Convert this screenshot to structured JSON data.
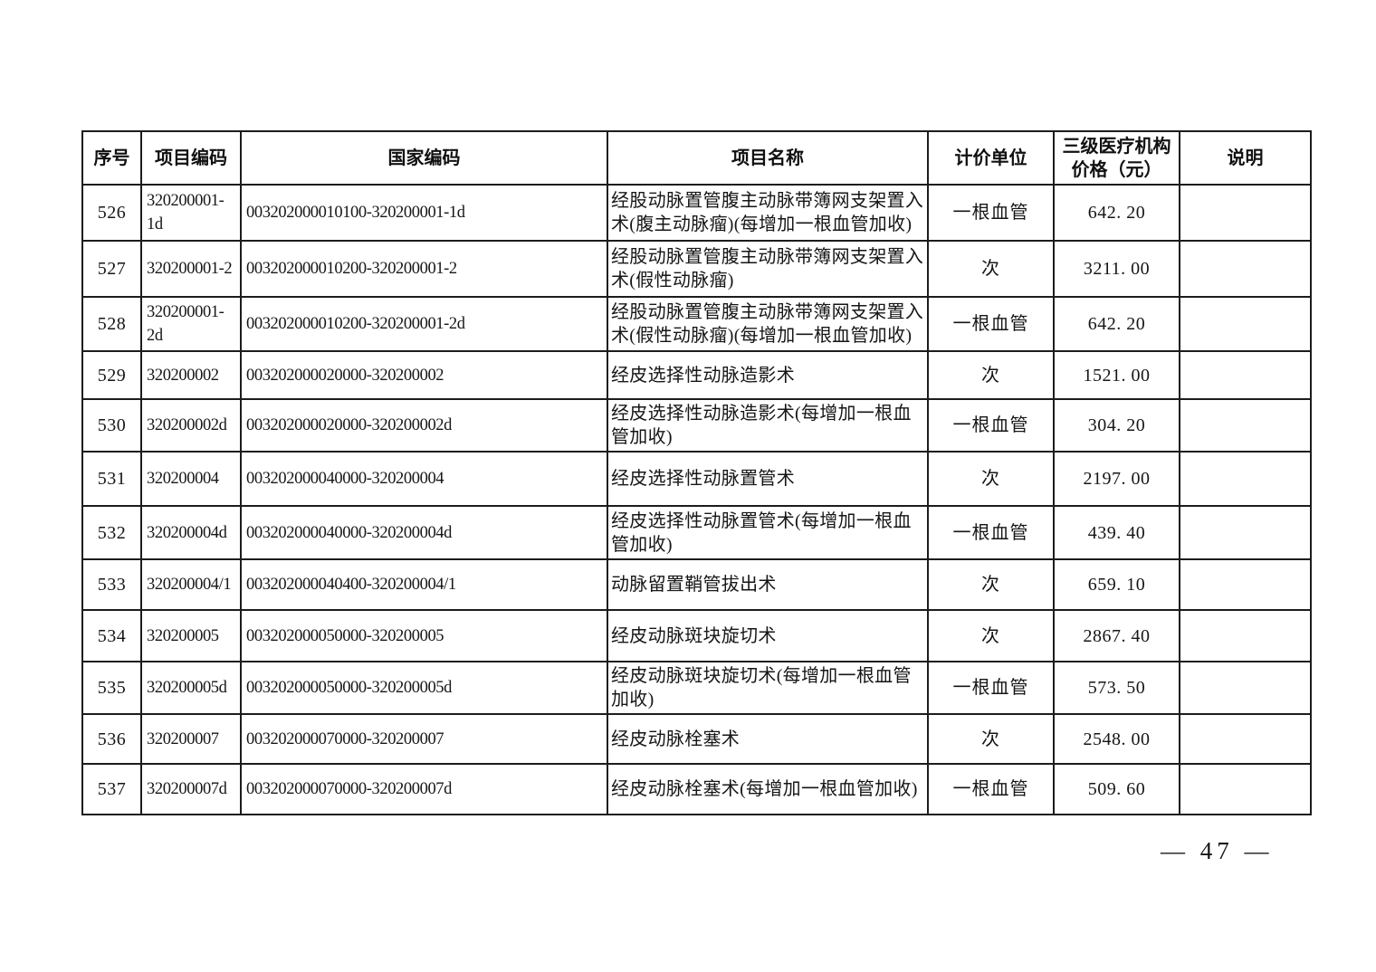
{
  "table": {
    "columns": [
      {
        "key": "seq",
        "label": "序号"
      },
      {
        "key": "item_code",
        "label": "项目编码"
      },
      {
        "key": "national_code",
        "label": "国家编码"
      },
      {
        "key": "item_name",
        "label": "项目名称"
      },
      {
        "key": "unit",
        "label": "计价单位"
      },
      {
        "key": "price",
        "label": "三级医疗机构价格（元）",
        "label_lines": [
          "三级医疗机构",
          "价格（元）"
        ]
      },
      {
        "key": "note",
        "label": "说明"
      }
    ],
    "rows": [
      {
        "seq": "526",
        "item_code": "320200001-1d",
        "national_code": "003202000010100-320200001-1d",
        "item_name": "经股动脉置管腹主动脉带簿网支架置入术(腹主动脉瘤)(每增加一根血管加收)",
        "unit": "一根血管",
        "price": "642. 20",
        "note": ""
      },
      {
        "seq": "527",
        "item_code": "320200001-2",
        "national_code": "003202000010200-320200001-2",
        "item_name": "经股动脉置管腹主动脉带簿网支架置入术(假性动脉瘤)",
        "unit": "次",
        "price": "3211. 00",
        "note": ""
      },
      {
        "seq": "528",
        "item_code": "320200001-2d",
        "national_code": "003202000010200-320200001-2d",
        "item_name": "经股动脉置管腹主动脉带簿网支架置入术(假性动脉瘤)(每增加一根血管加收)",
        "unit": "一根血管",
        "price": "642. 20",
        "note": ""
      },
      {
        "seq": "529",
        "item_code": "320200002",
        "national_code": "003202000020000-320200002",
        "item_name": "经皮选择性动脉造影术",
        "unit": "次",
        "price": "1521. 00",
        "note": ""
      },
      {
        "seq": "530",
        "item_code": "320200002d",
        "national_code": "003202000020000-320200002d",
        "item_name": "经皮选择性动脉造影术(每增加一根血管加收)",
        "unit": "一根血管",
        "price": "304. 20",
        "note": ""
      },
      {
        "seq": "531",
        "item_code": "320200004",
        "national_code": "003202000040000-320200004",
        "item_name": "经皮选择性动脉置管术",
        "unit": "次",
        "price": "2197. 00",
        "note": ""
      },
      {
        "seq": "532",
        "item_code": "320200004d",
        "national_code": "003202000040000-320200004d",
        "item_name": "经皮选择性动脉置管术(每增加一根血管加收)",
        "unit": "一根血管",
        "price": "439. 40",
        "note": ""
      },
      {
        "seq": "533",
        "item_code": "320200004/1",
        "national_code": "003202000040400-320200004/1",
        "item_name": "动脉留置鞘管拔出术",
        "unit": "次",
        "price": "659. 10",
        "note": ""
      },
      {
        "seq": "534",
        "item_code": "320200005",
        "national_code": "003202000050000-320200005",
        "item_name": "经皮动脉斑块旋切术",
        "unit": "次",
        "price": "2867. 40",
        "note": ""
      },
      {
        "seq": "535",
        "item_code": "320200005d",
        "national_code": "003202000050000-320200005d",
        "item_name": "经皮动脉斑块旋切术(每增加一根血管加收)",
        "unit": "一根血管",
        "price": "573. 50",
        "note": ""
      },
      {
        "seq": "536",
        "item_code": "320200007",
        "national_code": "003202000070000-320200007",
        "item_name": "经皮动脉栓塞术",
        "unit": "次",
        "price": "2548. 00",
        "note": ""
      },
      {
        "seq": "537",
        "item_code": "320200007d",
        "national_code": "003202000070000-320200007d",
        "item_name": "经皮动脉栓塞术(每增加一根血管加收)",
        "unit": "一根血管",
        "price": "509. 60",
        "note": ""
      }
    ]
  },
  "footer": {
    "page_label": "— 47 —"
  },
  "colors": {
    "page_background": "#ffffff",
    "text": "#161616",
    "table_border": "#1c1c1c"
  }
}
